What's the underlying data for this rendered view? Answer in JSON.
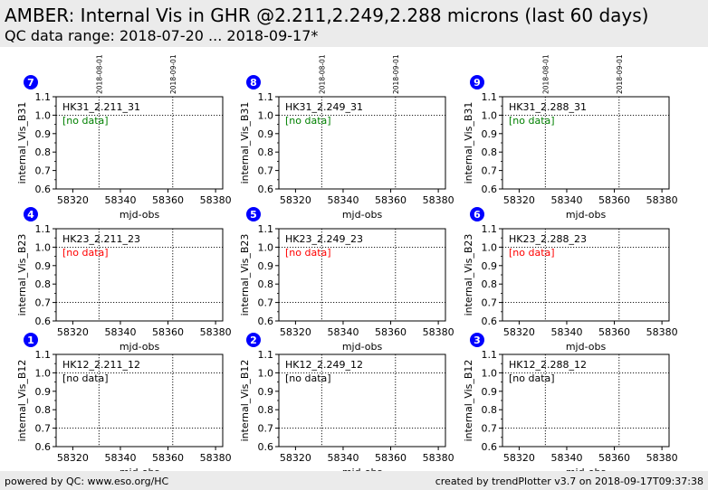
{
  "header": {
    "title": "AMBER: Internal Vis in GHR @2.211,2.249,2.288 microns (last 60 days)",
    "subtitle": "QC data range: 2018-07-20 ... 2018-09-17*"
  },
  "footer": {
    "left": "powered by QC: www.eso.org/HC",
    "right": "created by trendPlotter v3.7 on 2018-09-17T09:37:38"
  },
  "colors": {
    "badge_fill": "#0000ff",
    "badge_text": "#ffffff",
    "no_data_green": "#008000",
    "no_data_red": "#ff0000",
    "no_data_black": "#000000",
    "header_bg": "#ebebeb"
  },
  "chart_data": [
    {
      "type": "scatter",
      "panel_number": "7",
      "label": "HK31_2.211_31",
      "ylabel": "internal_Vis_B31",
      "xlabel": "mjd-obs",
      "no_data_text": "[no data]",
      "no_data_color": "green",
      "xlim": [
        58313,
        58383
      ],
      "ylim": [
        0.6,
        1.1
      ],
      "xticks": [
        58320,
        58340,
        58360,
        58380
      ],
      "yticks": [
        0.6,
        0.7,
        0.8,
        0.9,
        1.0,
        1.1
      ],
      "hlines": [
        1.0
      ],
      "vlines": [
        {
          "x": 58331,
          "label": "2018-08-01"
        },
        {
          "x": 58362,
          "label": "2018-09-01"
        }
      ],
      "x": [],
      "y": []
    },
    {
      "type": "scatter",
      "panel_number": "8",
      "label": "HK31_2.249_31",
      "ylabel": "internal_Vis_B31",
      "xlabel": "mjd-obs",
      "no_data_text": "[no data]",
      "no_data_color": "green",
      "xlim": [
        58313,
        58383
      ],
      "ylim": [
        0.6,
        1.1
      ],
      "xticks": [
        58320,
        58340,
        58360,
        58380
      ],
      "yticks": [
        0.6,
        0.7,
        0.8,
        0.9,
        1.0,
        1.1
      ],
      "hlines": [
        1.0
      ],
      "vlines": [
        {
          "x": 58331,
          "label": "2018-08-01"
        },
        {
          "x": 58362,
          "label": "2018-09-01"
        }
      ],
      "x": [],
      "y": []
    },
    {
      "type": "scatter",
      "panel_number": "9",
      "label": "HK31_2.288_31",
      "ylabel": "internal_Vis_B31",
      "xlabel": "mjd-obs",
      "no_data_text": "[no data]",
      "no_data_color": "green",
      "xlim": [
        58313,
        58383
      ],
      "ylim": [
        0.6,
        1.1
      ],
      "xticks": [
        58320,
        58340,
        58360,
        58380
      ],
      "yticks": [
        0.6,
        0.7,
        0.8,
        0.9,
        1.0,
        1.1
      ],
      "hlines": [
        1.0
      ],
      "vlines": [
        {
          "x": 58331,
          "label": "2018-08-01"
        },
        {
          "x": 58362,
          "label": "2018-09-01"
        }
      ],
      "x": [],
      "y": []
    },
    {
      "type": "scatter",
      "panel_number": "4",
      "label": "HK23_2.211_23",
      "ylabel": "internal_Vis_B23",
      "xlabel": "mjd-obs",
      "no_data_text": "[no data]",
      "no_data_color": "red",
      "xlim": [
        58313,
        58383
      ],
      "ylim": [
        0.6,
        1.1
      ],
      "xticks": [
        58320,
        58340,
        58360,
        58380
      ],
      "yticks": [
        0.6,
        0.7,
        0.8,
        0.9,
        1.0,
        1.1
      ],
      "hlines": [
        1.0,
        0.7
      ],
      "vlines": [
        {
          "x": 58331,
          "label": ""
        },
        {
          "x": 58362,
          "label": ""
        }
      ],
      "x": [],
      "y": []
    },
    {
      "type": "scatter",
      "panel_number": "5",
      "label": "HK23_2.249_23",
      "ylabel": "internal_Vis_B23",
      "xlabel": "mjd-obs",
      "no_data_text": "[no data]",
      "no_data_color": "red",
      "xlim": [
        58313,
        58383
      ],
      "ylim": [
        0.6,
        1.1
      ],
      "xticks": [
        58320,
        58340,
        58360,
        58380
      ],
      "yticks": [
        0.6,
        0.7,
        0.8,
        0.9,
        1.0,
        1.1
      ],
      "hlines": [
        1.0,
        0.7
      ],
      "vlines": [
        {
          "x": 58331,
          "label": ""
        },
        {
          "x": 58362,
          "label": ""
        }
      ],
      "x": [],
      "y": []
    },
    {
      "type": "scatter",
      "panel_number": "6",
      "label": "HK23_2.288_23",
      "ylabel": "internal_Vis_B23",
      "xlabel": "mjd-obs",
      "no_data_text": "[no data]",
      "no_data_color": "red",
      "xlim": [
        58313,
        58383
      ],
      "ylim": [
        0.6,
        1.1
      ],
      "xticks": [
        58320,
        58340,
        58360,
        58380
      ],
      "yticks": [
        0.6,
        0.7,
        0.8,
        0.9,
        1.0,
        1.1
      ],
      "hlines": [
        1.0,
        0.7
      ],
      "vlines": [
        {
          "x": 58331,
          "label": ""
        },
        {
          "x": 58362,
          "label": ""
        }
      ],
      "x": [],
      "y": []
    },
    {
      "type": "scatter",
      "panel_number": "1",
      "label": "HK12_2.211_12",
      "ylabel": "internal_Vis_B12",
      "xlabel": "mjd-obs",
      "no_data_text": "[no data]",
      "no_data_color": "black",
      "xlim": [
        58313,
        58383
      ],
      "ylim": [
        0.6,
        1.1
      ],
      "xticks": [
        58320,
        58340,
        58360,
        58380
      ],
      "yticks": [
        0.6,
        0.7,
        0.8,
        0.9,
        1.0,
        1.1
      ],
      "hlines": [
        1.0,
        0.7
      ],
      "vlines": [
        {
          "x": 58331,
          "label": ""
        },
        {
          "x": 58362,
          "label": ""
        }
      ],
      "x": [],
      "y": []
    },
    {
      "type": "scatter",
      "panel_number": "2",
      "label": "HK12_2.249_12",
      "ylabel": "internal_Vis_B12",
      "xlabel": "mjd-obs",
      "no_data_text": "[no data]",
      "no_data_color": "black",
      "xlim": [
        58313,
        58383
      ],
      "ylim": [
        0.6,
        1.1
      ],
      "xticks": [
        58320,
        58340,
        58360,
        58380
      ],
      "yticks": [
        0.6,
        0.7,
        0.8,
        0.9,
        1.0,
        1.1
      ],
      "hlines": [
        1.0,
        0.7
      ],
      "vlines": [
        {
          "x": 58331,
          "label": ""
        },
        {
          "x": 58362,
          "label": ""
        }
      ],
      "x": [],
      "y": []
    },
    {
      "type": "scatter",
      "panel_number": "3",
      "label": "HK12_2.288_12",
      "ylabel": "internal_Vis_B12",
      "xlabel": "mjd-obs",
      "no_data_text": "[no data]",
      "no_data_color": "black",
      "xlim": [
        58313,
        58383
      ],
      "ylim": [
        0.6,
        1.1
      ],
      "xticks": [
        58320,
        58340,
        58360,
        58380
      ],
      "yticks": [
        0.6,
        0.7,
        0.8,
        0.9,
        1.0,
        1.1
      ],
      "hlines": [
        1.0,
        0.7
      ],
      "vlines": [
        {
          "x": 58331,
          "label": ""
        },
        {
          "x": 58362,
          "label": ""
        }
      ],
      "x": [],
      "y": []
    }
  ]
}
